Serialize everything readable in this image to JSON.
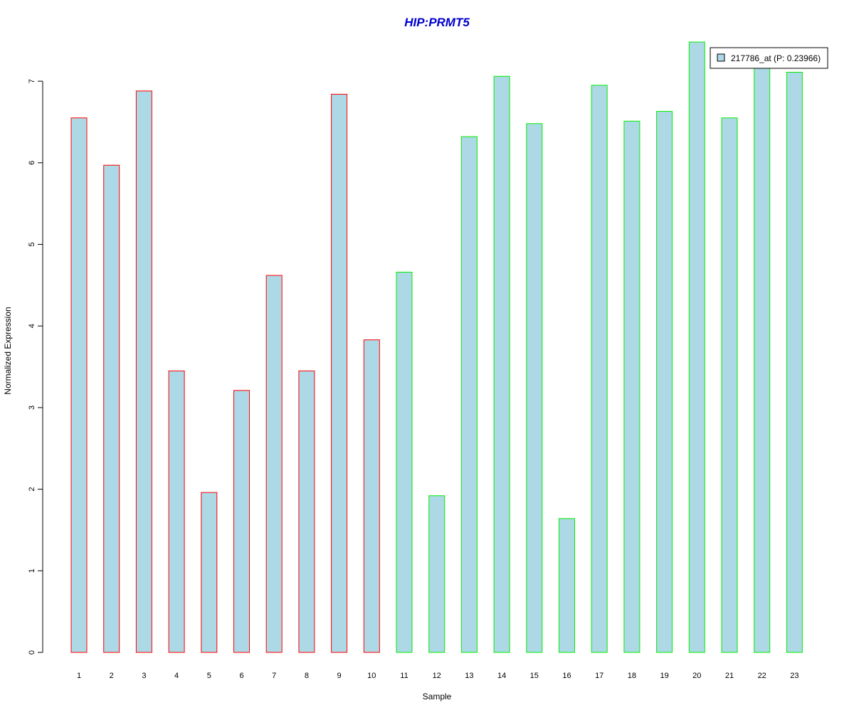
{
  "chart_data": {
    "type": "bar",
    "title": "HIP:PRMT5",
    "xlabel": "Sample",
    "ylabel": "Normalized Expression",
    "categories": [
      "1",
      "2",
      "3",
      "4",
      "5",
      "6",
      "7",
      "8",
      "9",
      "10",
      "11",
      "12",
      "13",
      "14",
      "15",
      "16",
      "17",
      "18",
      "19",
      "20",
      "21",
      "22",
      "23"
    ],
    "series": [
      {
        "name": "217786_at (P: 0.23966)",
        "values": [
          6.55,
          5.97,
          6.88,
          3.45,
          1.96,
          3.21,
          4.62,
          3.45,
          6.84,
          3.83,
          4.66,
          1.92,
          6.32,
          7.06,
          6.48,
          1.64,
          6.95,
          6.51,
          6.63,
          7.48,
          6.55,
          7.2,
          7.11
        ]
      }
    ],
    "groups": [
      {
        "samples": [
          1,
          10
        ],
        "border_color": "#ff0000"
      },
      {
        "samples": [
          11,
          23
        ],
        "border_color": "#00ee00"
      }
    ],
    "ylim": [
      0,
      7.5
    ],
    "yticks": [
      0,
      1,
      2,
      3,
      4,
      5,
      6,
      7
    ],
    "grid": false,
    "legend_position": "top-right",
    "colors": {
      "bar_fill": "#add8e6",
      "title": "#0000cd",
      "axis": "#000000"
    }
  }
}
